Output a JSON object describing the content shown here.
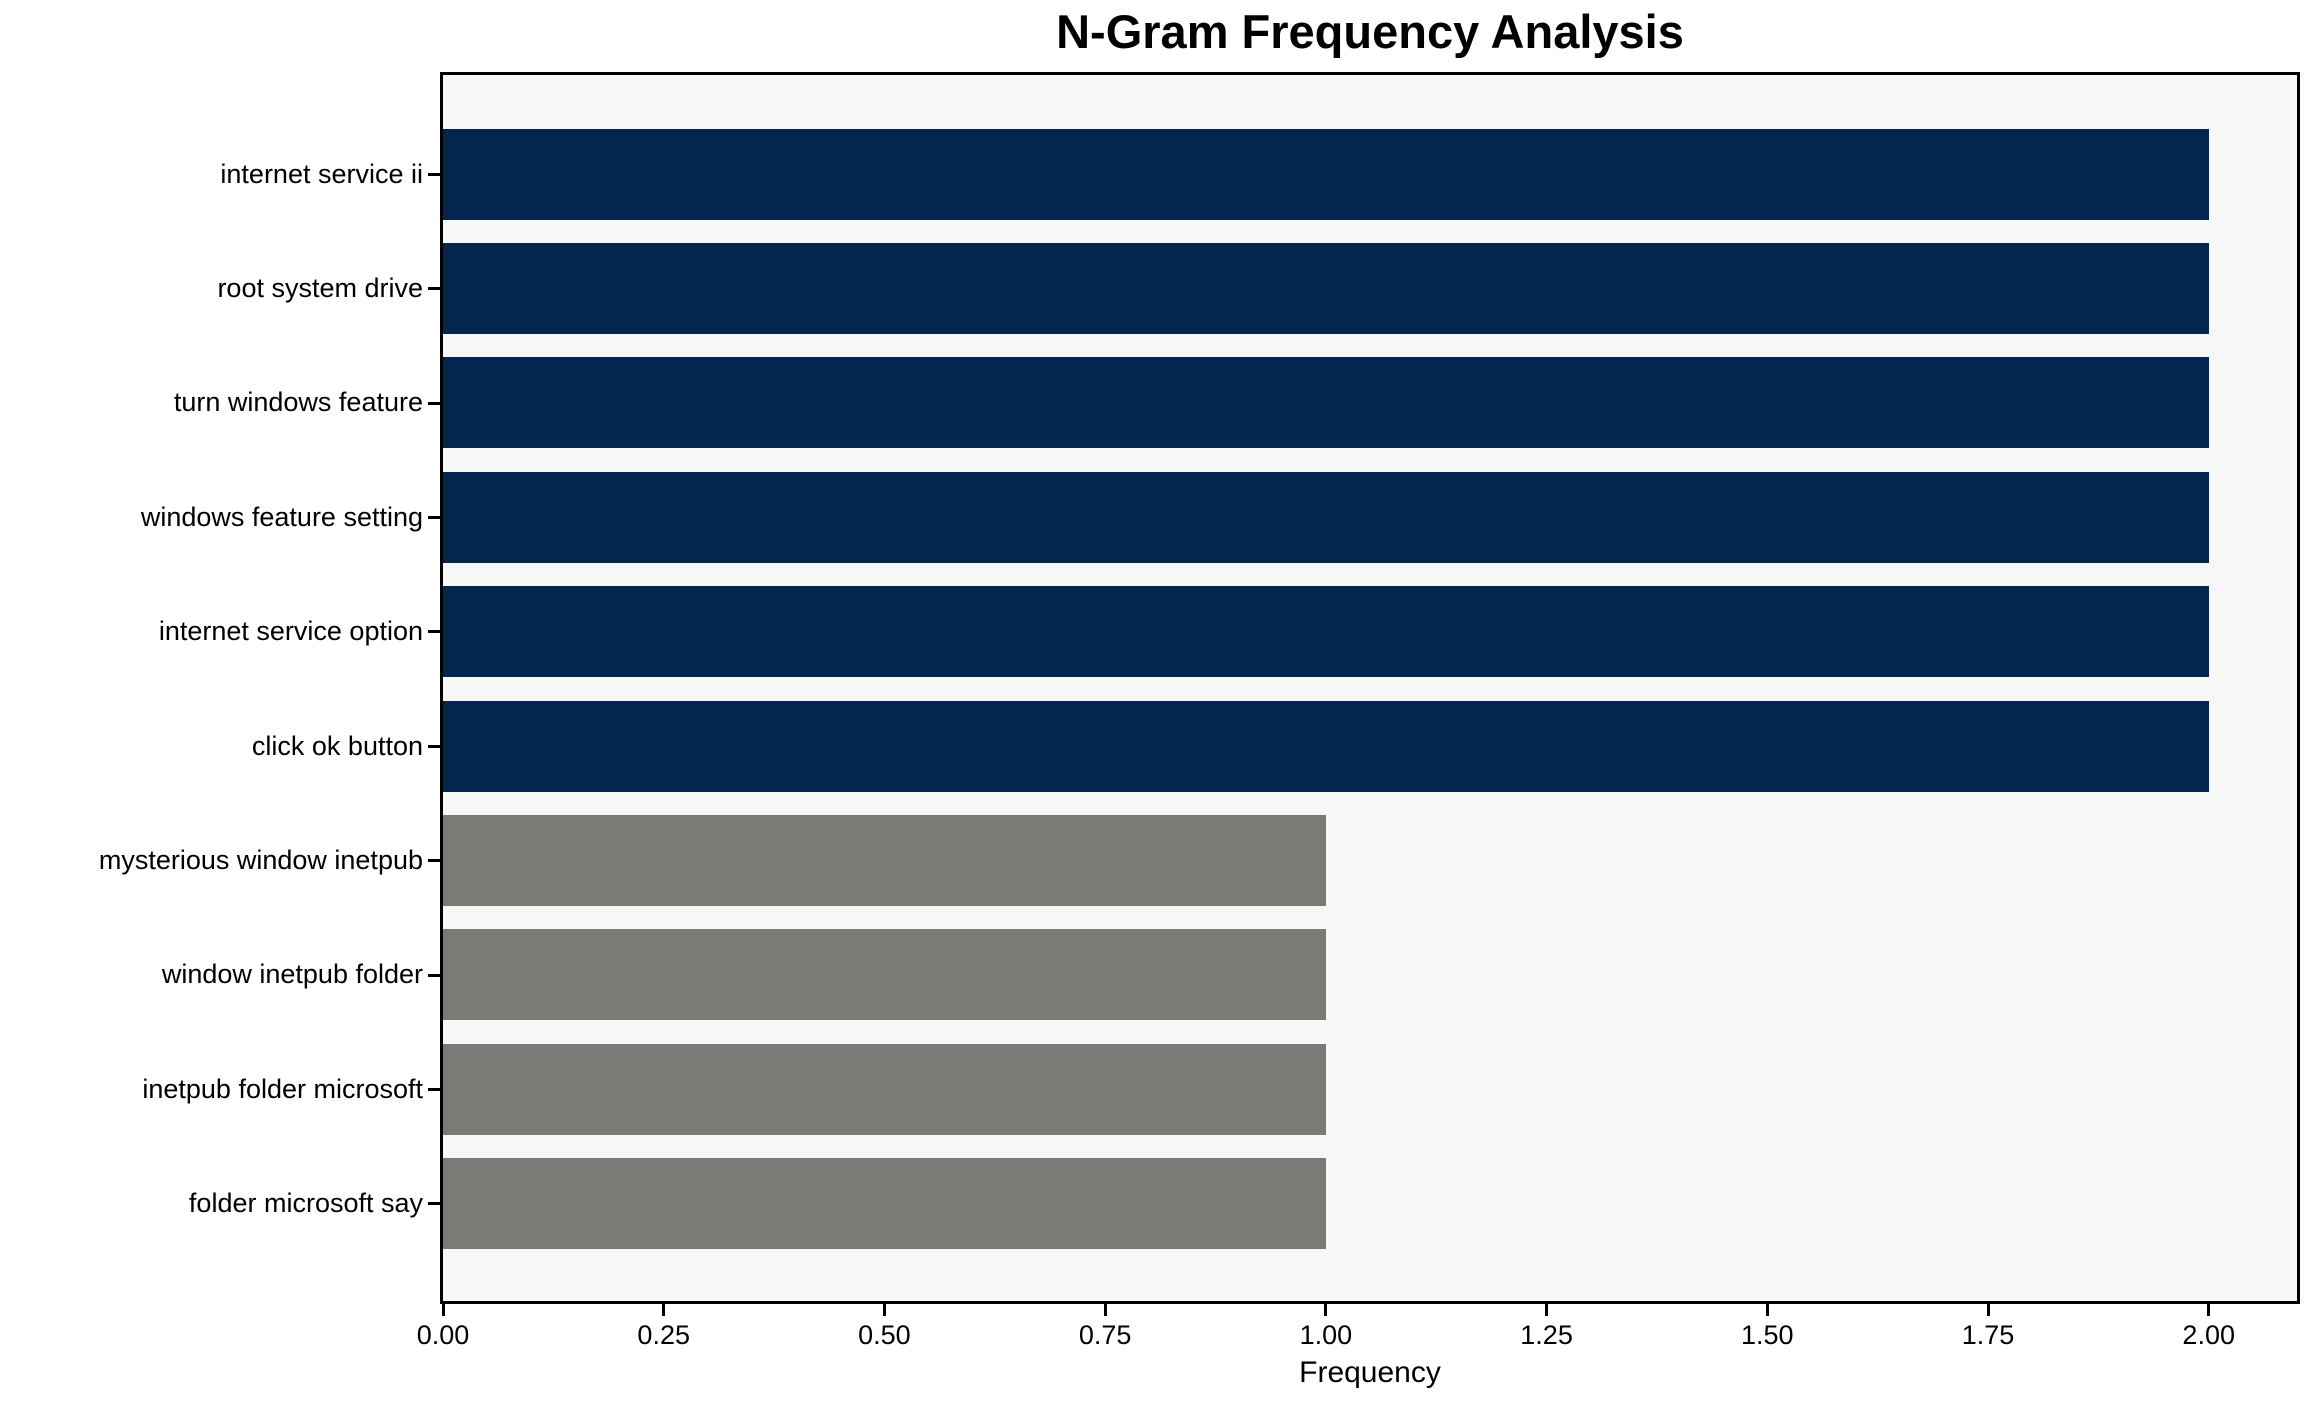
{
  "chart_data": {
    "type": "bar",
    "orientation": "horizontal",
    "title": "N-Gram Frequency Analysis",
    "xlabel": "Frequency",
    "ylabel": "",
    "categories": [
      "internet service ii",
      "root system drive",
      "turn windows feature",
      "windows feature setting",
      "internet service option",
      "click ok button",
      "mysterious window inetpub",
      "window inetpub folder",
      "inetpub folder microsoft",
      "folder microsoft say"
    ],
    "values": [
      2,
      2,
      2,
      2,
      2,
      2,
      1,
      1,
      1,
      1
    ],
    "bar_colors": [
      "#03254e",
      "#03254e",
      "#03254e",
      "#03254e",
      "#03254e",
      "#03254e",
      "#7b7a76",
      "#7b7a76",
      "#7b7a76",
      "#7b7a76"
    ],
    "xlim": [
      0,
      2.1
    ],
    "x_tick_labels": [
      "0.00",
      "0.25",
      "0.50",
      "0.75",
      "1.00",
      "1.25",
      "1.50",
      "1.75",
      "2.00"
    ],
    "x_tick_values": [
      0,
      0.25,
      0.5,
      0.75,
      1.0,
      1.25,
      1.5,
      1.75,
      2.0
    ],
    "grid": false,
    "legend": false,
    "colors": {
      "high_frequency_bar": "#03254e",
      "low_frequency_bar": "#7b7a76",
      "plot_background": "#f7f7f7",
      "figure_background": "#ffffff",
      "axis": "#000000",
      "text": "#000000"
    }
  }
}
